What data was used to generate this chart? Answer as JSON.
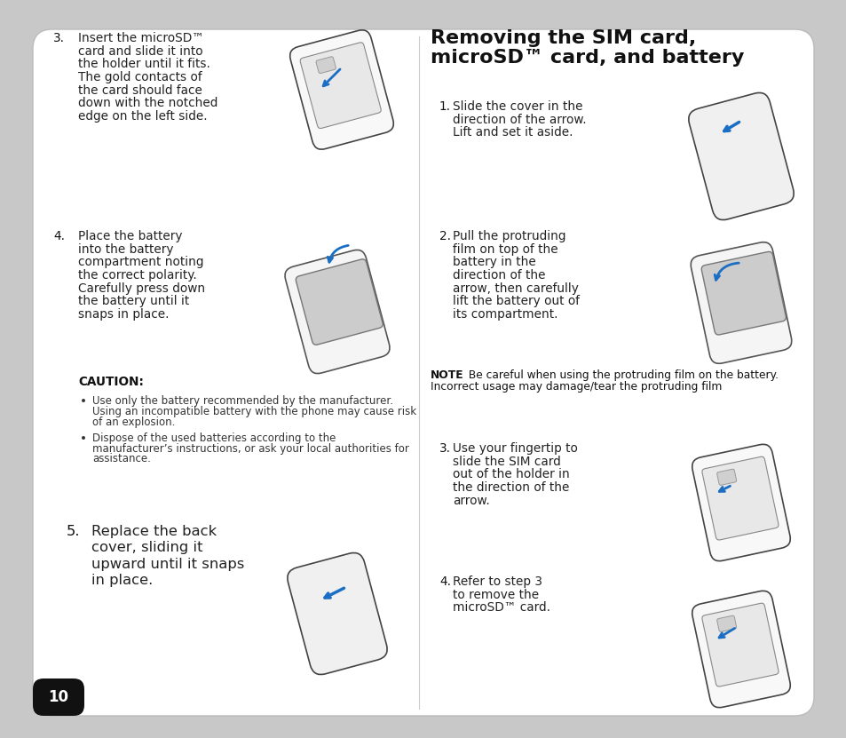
{
  "bg_outer": "#c8c8c8",
  "bg_card": "#ffffff",
  "page_num": "10",
  "left_steps": [
    {
      "num": "3.",
      "lines": [
        "Insert the microSD™",
        "card and slide it into",
        "the holder until it fits.",
        "The gold contacts of",
        "the card should face",
        "down with the notched",
        "edge on the left side."
      ]
    },
    {
      "num": "4.",
      "lines": [
        "Place the battery",
        "into the battery",
        "compartment noting",
        "the correct polarity.",
        "Carefully press down",
        "the battery until it",
        "snaps in place."
      ]
    },
    {
      "num": "5.",
      "lines": [
        "Replace the back",
        "cover, sliding it",
        "upward until it snaps",
        "in place."
      ]
    }
  ],
  "caution_title": "CAUTION:",
  "caution_bullets": [
    [
      "Use only the battery recommended by the manufacturer.",
      "Using an incompatible battery with the phone may cause risk",
      "of an explosion."
    ],
    [
      "Dispose of the used batteries according to the",
      "manufacturer’s instructions, or ask your local authorities for",
      "assistance."
    ]
  ],
  "right_steps": [
    {
      "num": "1.",
      "lines": [
        "Slide the cover in the",
        "direction of the arrow.",
        "Lift and set it aside."
      ]
    },
    {
      "num": "2.",
      "lines": [
        "Pull the protruding",
        "film on top of the",
        "battery in the",
        "direction of the",
        "arrow, then carefully",
        "lift the battery out of",
        "its compartment."
      ]
    },
    {
      "num": "3.",
      "lines": [
        "Use your fingertip to",
        "slide the SIM card",
        "out of the holder in",
        "the direction of the",
        "arrow."
      ]
    },
    {
      "num": "4.",
      "lines": [
        "Refer to step 3",
        "to remove the",
        "microSD™ card."
      ]
    }
  ],
  "note_line1": "NOTE: Be careful when using the protruding film on the battery.",
  "note_line2": "Incorrect usage may damage/tear the protruding film",
  "title_line1": "Removing the SIM card,",
  "title_line2": "microSD™ card, and battery"
}
